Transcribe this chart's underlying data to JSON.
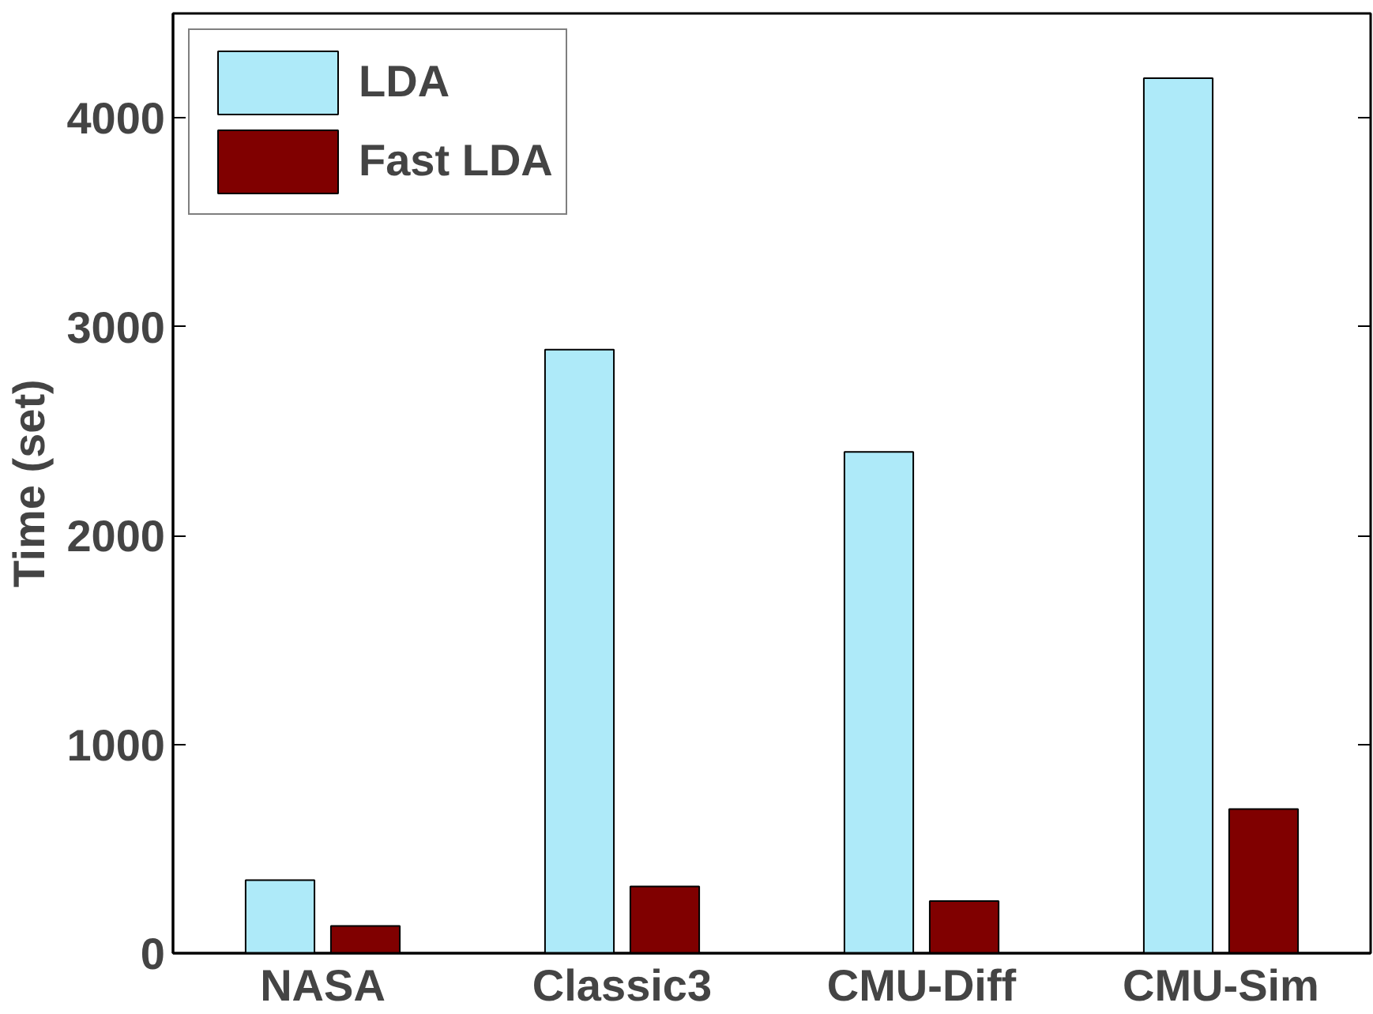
{
  "chart_data": {
    "type": "bar",
    "ylabel": "Time (set)",
    "categories": [
      "NASA",
      "Classic3",
      "CMU-Diff",
      "CMU-Sim"
    ],
    "series": [
      {
        "name": "LDA",
        "color": "#aeeaf9",
        "values": [
          350,
          2890,
          2400,
          4190
        ]
      },
      {
        "name": "Fast LDA",
        "color": "#800000",
        "values": [
          130,
          320,
          250,
          690
        ]
      }
    ],
    "ylim": [
      0,
      4500
    ],
    "yticks": [
      0,
      1000,
      2000,
      3000,
      4000
    ],
    "grid": false,
    "legend": "top left"
  }
}
